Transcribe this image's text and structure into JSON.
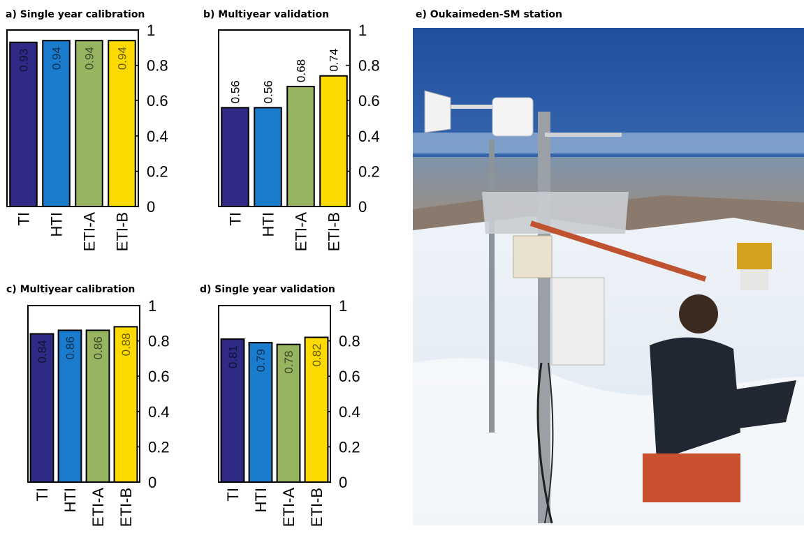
{
  "colors": {
    "TI": "#2e2a85",
    "HTI": "#1b7bcd",
    "ETI-A": "#97b461",
    "ETI-B": "#fedb00"
  },
  "chart_data": [
    {
      "type": "bar",
      "title": "a) Single year calibration",
      "categories": [
        "TI",
        "HTI",
        "ETI-A",
        "ETI-B"
      ],
      "values": [
        0.93,
        0.94,
        0.94,
        0.94
      ],
      "value_labels": [
        "0.93",
        "0.94",
        "0.94",
        "0.94"
      ],
      "label_position": "inside-top",
      "ylim": [
        0,
        1
      ],
      "yticks": [
        "0",
        "0.2",
        "0.4",
        "0.6",
        "0.8",
        "1"
      ],
      "yaxis_side": "right",
      "xlabel": "",
      "ylabel": ""
    },
    {
      "type": "bar",
      "title": "b) Multiyear validation",
      "categories": [
        "TI",
        "HTI",
        "ETI-A",
        "ETI-B"
      ],
      "values": [
        0.56,
        0.56,
        0.68,
        0.74
      ],
      "value_labels": [
        "0.56",
        "0.56",
        "0.68",
        "0.74"
      ],
      "label_position": "above",
      "ylim": [
        0,
        1
      ],
      "yticks": [
        "0",
        "0.2",
        "0.4",
        "0.6",
        "0.8",
        "1"
      ],
      "yaxis_side": "right",
      "xlabel": "",
      "ylabel": ""
    },
    {
      "type": "bar",
      "title": "c) Multiyear calibration",
      "categories": [
        "TI",
        "HTI",
        "ETI-A",
        "ETI-B"
      ],
      "values": [
        0.84,
        0.86,
        0.86,
        0.88
      ],
      "value_labels": [
        "0.84",
        "0.86",
        "0.86",
        "0.88"
      ],
      "label_position": "inside-top",
      "ylim": [
        0,
        1
      ],
      "yticks": [
        "0",
        "0.2",
        "0.4",
        "0.6",
        "0.8",
        "1"
      ],
      "yaxis_side": "right",
      "xlabel": "",
      "ylabel": ""
    },
    {
      "type": "bar",
      "title": "d) Single year validation",
      "categories": [
        "TI",
        "HTI",
        "ETI-A",
        "ETI-B"
      ],
      "values": [
        0.81,
        0.79,
        0.78,
        0.82
      ],
      "value_labels": [
        "0.81",
        "0.79",
        "0.78",
        "0.82"
      ],
      "label_position": "inside-top",
      "ylim": [
        0,
        1
      ],
      "yticks": [
        "0",
        "0.2",
        "0.4",
        "0.6",
        "0.8",
        "1"
      ],
      "yaxis_side": "right",
      "xlabel": "",
      "ylabel": ""
    }
  ],
  "photo": {
    "title": "e) Oukaimeden-SM station"
  }
}
